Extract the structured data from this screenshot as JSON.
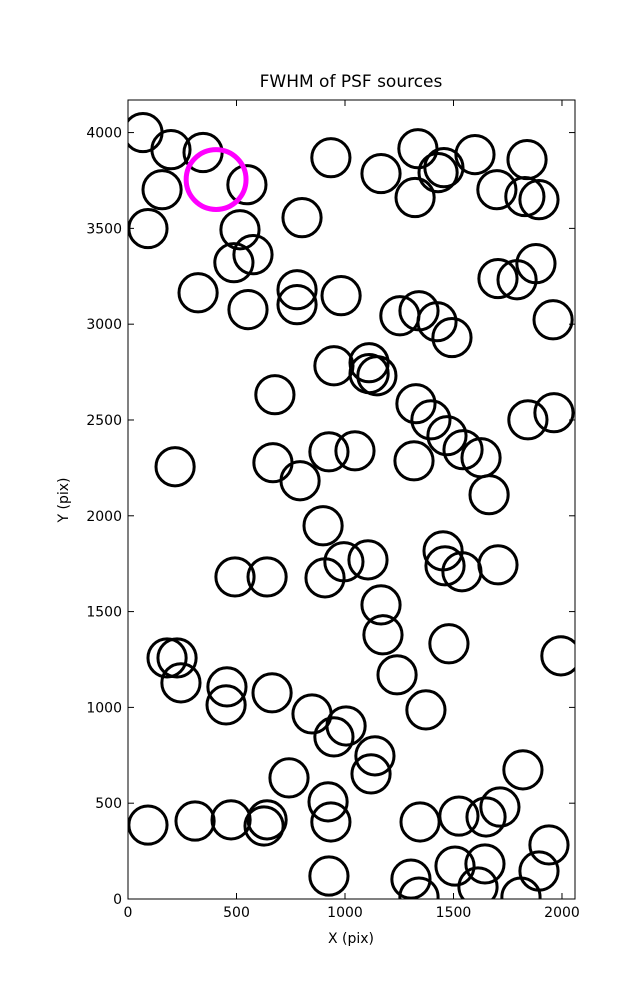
{
  "chart_data": {
    "type": "scatter",
    "title": "FWHM of PSF sources",
    "xlabel": "X (pix)",
    "ylabel": "Y (pix)",
    "xlim": [
      0,
      2060
    ],
    "ylim": [
      0,
      4170
    ],
    "xticks": [
      0,
      500,
      1000,
      1500,
      2000
    ],
    "yticks": [
      0,
      500,
      1000,
      1500,
      2000,
      2500,
      3000,
      3500,
      4000
    ],
    "grid": false,
    "series": [
      {
        "color": "#000000",
        "radius": 88,
        "x": [
          69,
          198,
          346,
          157,
          92,
          548,
          516,
          488,
          576,
          323,
          553,
          802,
          779,
          779,
          982,
          935,
          1166,
          1336,
          1323,
          1429,
          1456,
          1599,
          1700,
          1839,
          1829,
          1894,
          1705,
          1793,
          1880,
          1959,
          1253,
          1341,
          1424,
          1493,
          949,
          1111,
          1111,
          1147,
          677,
          1327,
          1396,
          1470,
          1544,
          1627,
          1664,
          1843,
          1963,
          217,
          668,
          793,
          926,
          1046,
          1318,
          899,
          995,
          1106,
          908,
          493,
          641,
          1452,
          1461,
          1539,
          1705,
          1166,
          1175,
          1240,
          1479,
          1995,
          180,
          226,
          244,
          456,
          452,
          664,
          848,
          1005,
          949,
          1373,
          1138,
          1120,
          742,
          1820,
          92,
          309,
          475,
          641,
          627,
          922,
          935,
          1346,
          1525,
          1714,
          1650,
          1940,
          1894,
          1645,
          1507,
          1304,
          1341,
          1613,
          1811,
          926
        ],
        "y": [
          4000,
          3911,
          3896,
          3702,
          3499,
          3728,
          3493,
          3321,
          3363,
          3164,
          3076,
          3556,
          3180,
          3102,
          3149,
          3869,
          3786,
          3916,
          3661,
          3791,
          3817,
          3885,
          3702,
          3859,
          3666,
          3650,
          3238,
          3232,
          3316,
          3023,
          3044,
          3070,
          3013,
          2930,
          2783,
          2799,
          2742,
          2731,
          2632,
          2585,
          2501,
          2418,
          2345,
          2303,
          2110,
          2501,
          2538,
          2256,
          2277,
          2183,
          2334,
          2339,
          2287,
          1948,
          1760,
          1770,
          1676,
          1681,
          1681,
          1817,
          1739,
          1708,
          1744,
          1535,
          1379,
          1170,
          1332,
          1269,
          1258,
          1258,
          1128,
          1107,
          1013,
          1076,
          966,
          903,
          846,
          987,
          747,
          653,
          632,
          674,
          386,
          407,
          413,
          413,
          381,
          507,
          402,
          402,
          433,
          480,
          428,
          282,
          146,
          183,
          172,
          104,
          10,
          63,
          10,
          120
        ]
      },
      {
        "color": "#ff00ff",
        "radius": 138,
        "x": [
          406
        ],
        "y": [
          3755
        ]
      }
    ]
  }
}
